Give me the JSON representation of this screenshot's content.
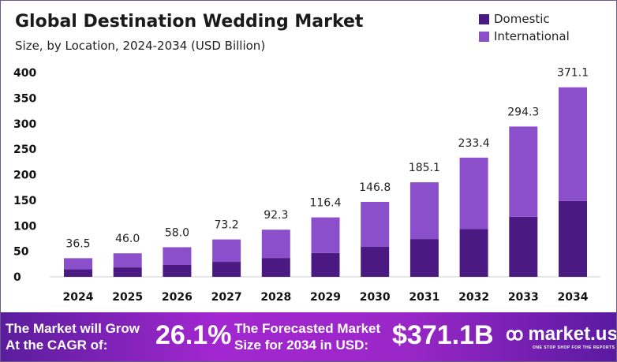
{
  "chart_data": {
    "type": "bar",
    "stacked": true,
    "title": "Global Destination Wedding Market",
    "subtitle": "Size, by Location, 2024-2034 (USD Billion)",
    "categories": [
      "2024",
      "2025",
      "2026",
      "2027",
      "2028",
      "2029",
      "2030",
      "2031",
      "2032",
      "2033",
      "2034"
    ],
    "totals": [
      36.5,
      46.0,
      58.0,
      73.2,
      92.3,
      116.4,
      146.8,
      185.1,
      233.4,
      294.3,
      371.1
    ],
    "total_labels": [
      "36.5",
      "46.0",
      "58.0",
      "73.2",
      "92.3",
      "116.4",
      "146.8",
      "185.1",
      "233.4",
      "294.3",
      "371.1"
    ],
    "series": [
      {
        "name": "Domestic",
        "color": "#4a1a82",
        "values": [
          14.6,
          18.4,
          23.2,
          29.3,
          36.9,
          46.6,
          58.7,
          74.0,
          93.4,
          117.7,
          148.4
        ]
      },
      {
        "name": "International",
        "color": "#8b4fcc",
        "values": [
          21.9,
          27.6,
          34.8,
          43.9,
          55.4,
          69.8,
          88.1,
          111.1,
          140.0,
          176.6,
          222.7
        ]
      }
    ],
    "yticks": [
      "0",
      "50",
      "100",
      "150",
      "200",
      "250",
      "300",
      "350",
      "400"
    ],
    "ylim": [
      0,
      400
    ],
    "grid": false,
    "legend": "top-right"
  },
  "banner": {
    "cagr_text_1": "The Market will Grow",
    "cagr_text_2": "At the CAGR of:",
    "cagr": "26.1%",
    "forecast_text_1": "The Forecasted Market",
    "forecast_text_2": "Size for 2034 in USD:",
    "forecast": "$371.1B",
    "logo": "market.us",
    "logo_tagline": "ONE STOP SHOP FOR THE REPORTS"
  }
}
